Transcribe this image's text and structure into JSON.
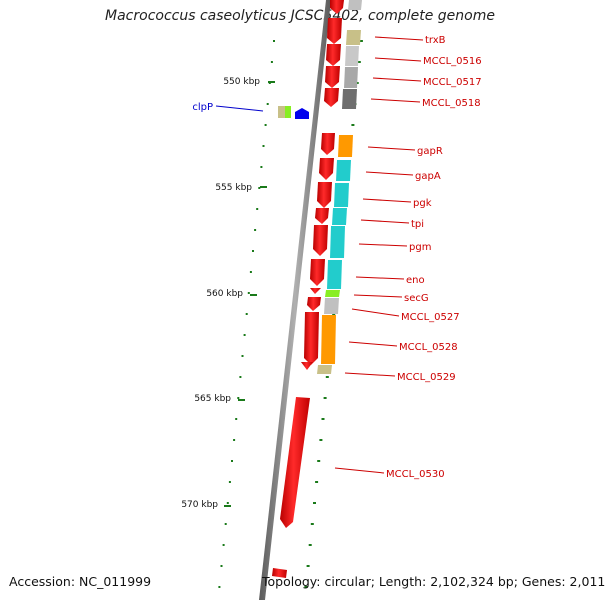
{
  "title": "Macrococcus caseolyticus JCSC5402, complete genome",
  "footer": {
    "accession": "Accession: NC_011999",
    "topology": "Topology: circular; Length: 2,102,324 bp; Genes: 2,011"
  },
  "scale": {
    "ticks": [
      "550 kbp",
      "555 kbp",
      "560 kbp",
      "565 kbp",
      "570 kbp"
    ]
  },
  "colors": {
    "cds_red": "#ee0000",
    "label_red": "#cc0000",
    "label_blue": "#0000cc",
    "backbone": "#808080",
    "tick_green": "#1a7a1a",
    "khaki": "#c8c088",
    "lightgray": "#c0c0c0",
    "darkgray": "#707070",
    "orange": "#ff9900",
    "cyan": "#22cccc",
    "lime": "#88ee22",
    "blue": "#0000ee"
  },
  "genes_right": [
    {
      "name": "trxB"
    },
    {
      "name": "MCCL_0516"
    },
    {
      "name": "MCCL_0517"
    },
    {
      "name": "MCCL_0518"
    },
    {
      "name": "gapR"
    },
    {
      "name": "gapA"
    },
    {
      "name": "pgk"
    },
    {
      "name": "tpi"
    },
    {
      "name": "pgm"
    },
    {
      "name": "eno"
    },
    {
      "name": "secG"
    },
    {
      "name": "MCCL_0527"
    },
    {
      "name": "MCCL_0528"
    },
    {
      "name": "MCCL_0529"
    },
    {
      "name": "MCCL_0530"
    }
  ],
  "genes_left": [
    {
      "name": "clpP"
    }
  ]
}
